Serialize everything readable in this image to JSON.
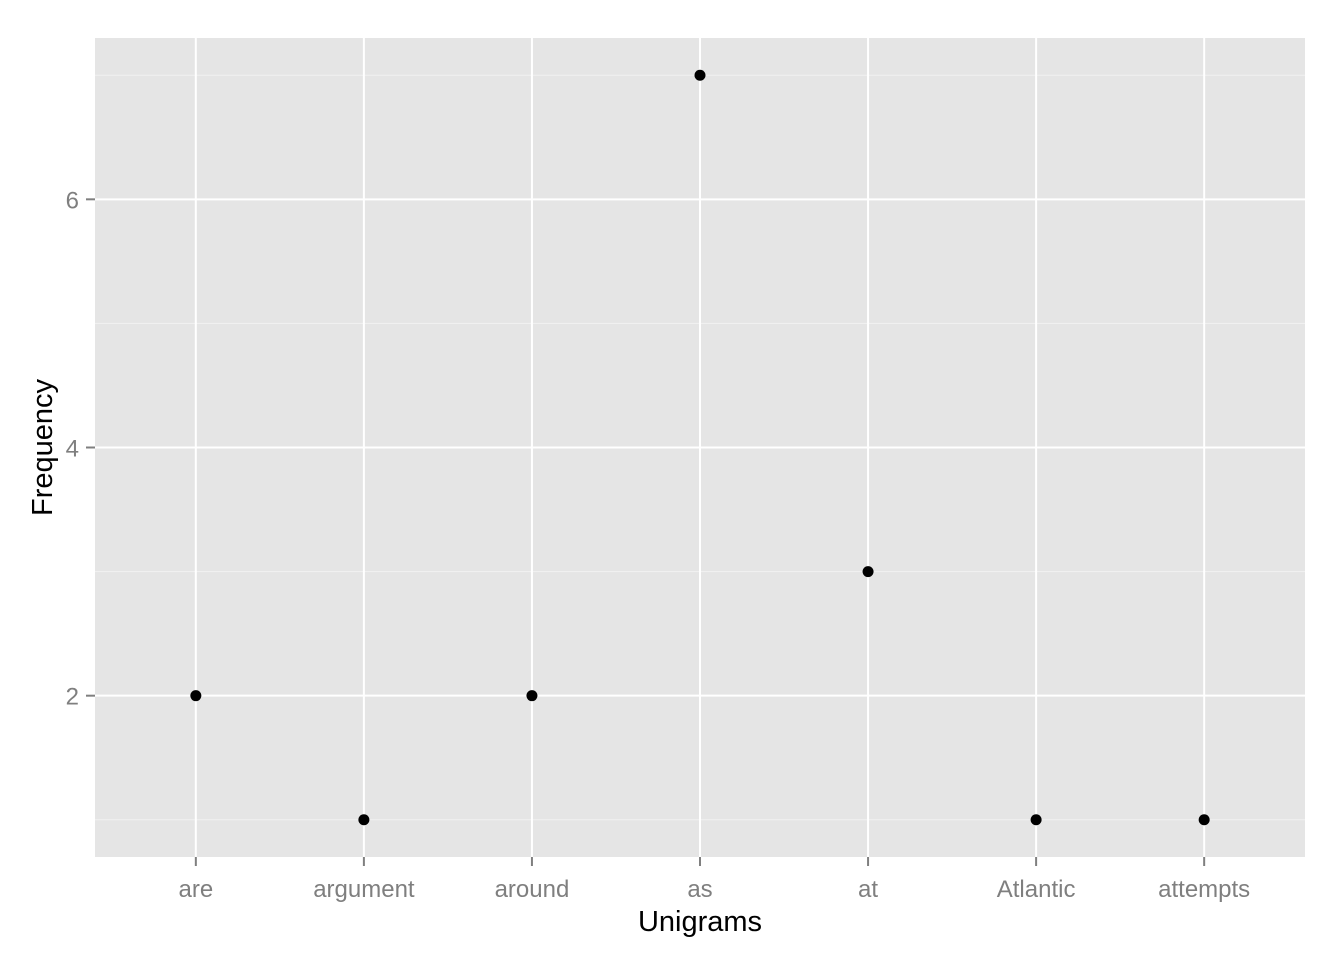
{
  "chart_data": {
    "type": "scatter",
    "title": "",
    "xlabel": "Unigrams",
    "ylabel": "Frequency",
    "categories": [
      "are",
      "argument",
      "around",
      "as",
      "at",
      "Atlantic",
      "attempts"
    ],
    "values": [
      2,
      1,
      2,
      7,
      3,
      1,
      1
    ],
    "ylim": [
      0.7,
      7.3
    ],
    "y_ticks": [
      2,
      4,
      6
    ],
    "y_tick_labels": [
      "2",
      "4",
      "6"
    ],
    "grid": true,
    "legend": "none",
    "colors": {
      "panel": "#e5e5e5",
      "grid_major": "#ffffff",
      "grid_minor": "#f2f2f2",
      "point": "#000000",
      "tick_label": "#7f7f7f",
      "tick_mark": "#7f7f7f",
      "axis_title": "#000000"
    }
  }
}
